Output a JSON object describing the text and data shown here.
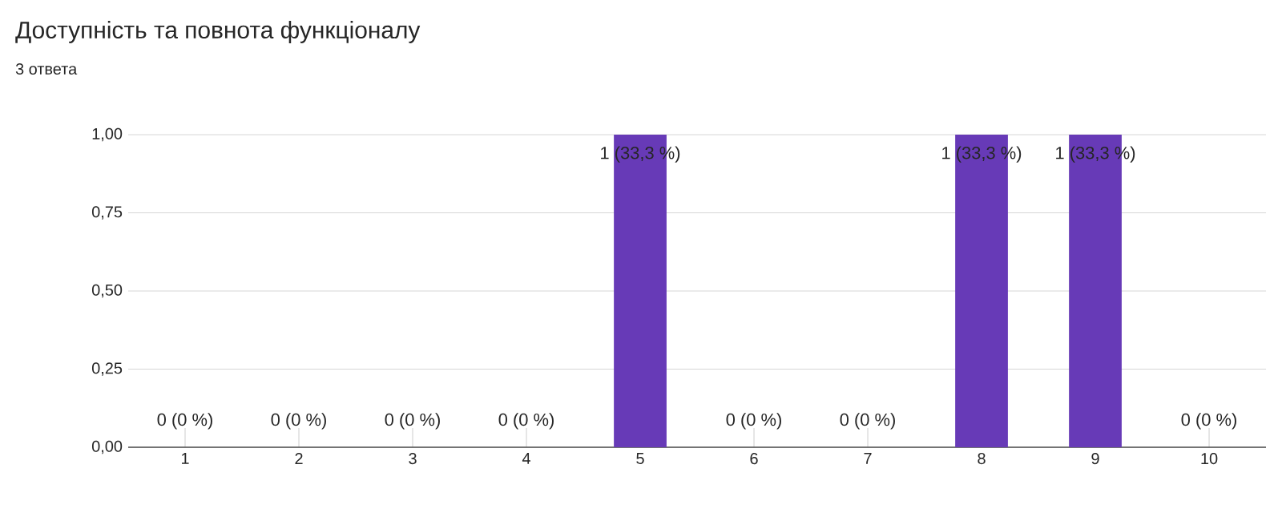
{
  "chart_data": {
    "type": "bar",
    "title": "Доступність та повнота функціоналу",
    "subtitle": "3 ответа",
    "categories": [
      "1",
      "2",
      "3",
      "4",
      "5",
      "6",
      "7",
      "8",
      "9",
      "10"
    ],
    "values": [
      0,
      0,
      0,
      0,
      1,
      0,
      0,
      1,
      1,
      0
    ],
    "value_labels": [
      "0 (0 %)",
      "0 (0 %)",
      "0 (0 %)",
      "0 (0 %)",
      "1 (33,3 %)",
      "0 (0 %)",
      "0 (0 %)",
      "1 (33,3 %)",
      "1 (33,3 %)",
      "0 (0 %)"
    ],
    "color": "#673ab7",
    "ylim": [
      0,
      1
    ],
    "yticks": [
      {
        "value": 0,
        "label": "0,00"
      },
      {
        "value": 0.25,
        "label": "0,25"
      },
      {
        "value": 0.5,
        "label": "0,50"
      },
      {
        "value": 0.75,
        "label": "0,75"
      },
      {
        "value": 1,
        "label": "1,00"
      }
    ],
    "grid": "y"
  }
}
